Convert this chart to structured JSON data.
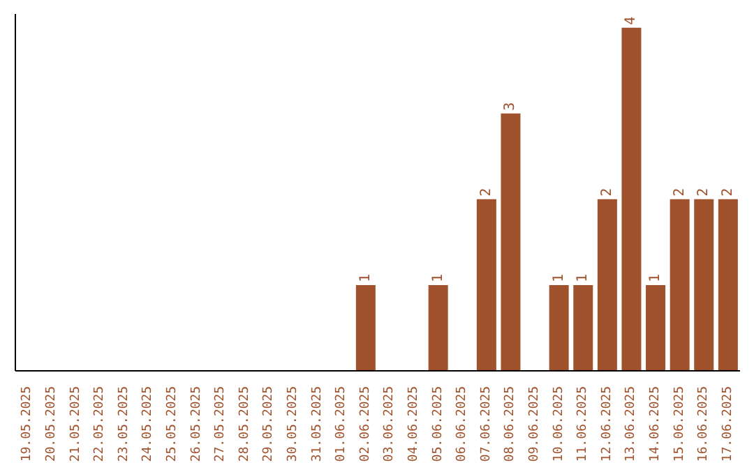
{
  "chart_data": {
    "type": "bar",
    "categories": [
      "19.05.2025",
      "20.05.2025",
      "21.05.2025",
      "22.05.2025",
      "23.05.2025",
      "24.05.2025",
      "25.05.2025",
      "26.05.2025",
      "27.05.2025",
      "28.05.2025",
      "29.05.2025",
      "30.05.2025",
      "31.05.2025",
      "01.06.2025",
      "02.06.2025",
      "03.06.2025",
      "04.06.2025",
      "05.06.2025",
      "06.06.2025",
      "07.06.2025",
      "08.06.2025",
      "09.06.2025",
      "10.06.2025",
      "11.06.2025",
      "12.06.2025",
      "13.06.2025",
      "14.06.2025",
      "15.06.2025",
      "16.06.2025",
      "17.06.2025"
    ],
    "values": [
      null,
      null,
      null,
      null,
      null,
      null,
      null,
      null,
      null,
      null,
      null,
      null,
      null,
      null,
      1,
      null,
      null,
      1,
      null,
      2,
      3,
      null,
      1,
      1,
      2,
      4,
      1,
      2,
      2,
      2
    ],
    "value_labels": [
      null,
      null,
      null,
      null,
      null,
      null,
      null,
      null,
      null,
      null,
      null,
      null,
      null,
      null,
      "1",
      null,
      null,
      "1",
      null,
      "2",
      "3",
      null,
      "1",
      "1",
      "2",
      "4",
      "1",
      "2",
      "2",
      "2"
    ],
    "color": "#a0522d",
    "grid": false,
    "legend": false
  }
}
